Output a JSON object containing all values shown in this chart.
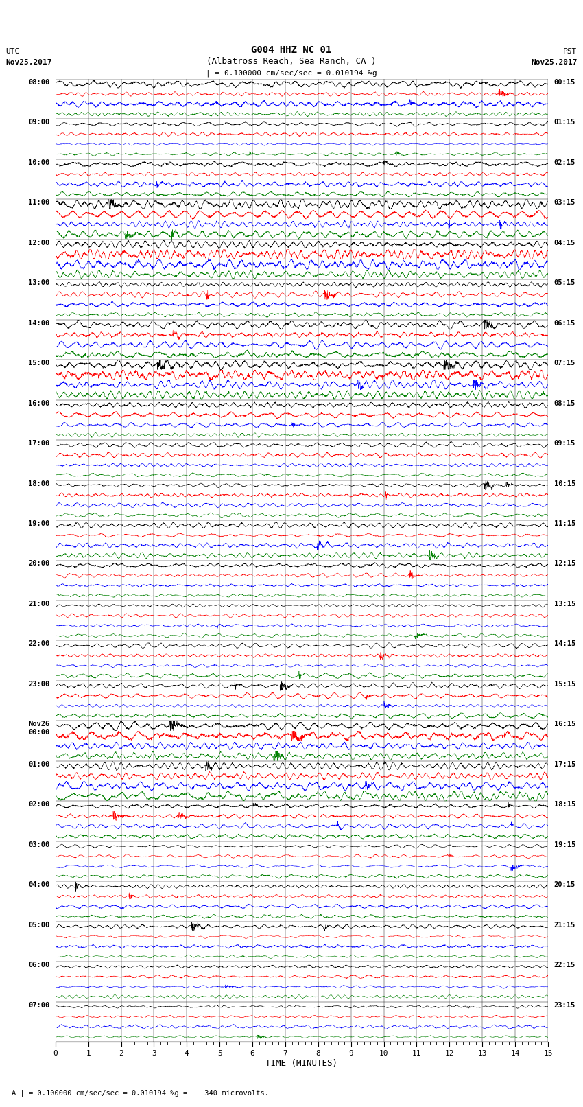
{
  "title_line1": "G004 HHZ NC 01",
  "title_line2": "(Albatross Reach, Sea Ranch, CA )",
  "scale_text": "| = 0.100000 cm/sec/sec = 0.010194 %g",
  "footer_text": "A | = 0.100000 cm/sec/sec = 0.010194 %g =    340 microvolts.",
  "left_label_top": "UTC",
  "left_label_date": "Nov25,2017",
  "right_label_top": "PST",
  "right_label_date": "Nov25,2017",
  "xlabel": "TIME (MINUTES)",
  "xlim": [
    0,
    15
  ],
  "xticks": [
    0,
    1,
    2,
    3,
    4,
    5,
    6,
    7,
    8,
    9,
    10,
    11,
    12,
    13,
    14,
    15
  ],
  "colors": [
    "black",
    "red",
    "blue",
    "green"
  ],
  "num_hours": 24,
  "traces_per_hour": 4,
  "bg_color": "white",
  "left_times_utc": [
    "08:00",
    "09:00",
    "10:00",
    "11:00",
    "12:00",
    "13:00",
    "14:00",
    "15:00",
    "16:00",
    "17:00",
    "18:00",
    "19:00",
    "20:00",
    "21:00",
    "22:00",
    "23:00",
    "Nov26\n00:00",
    "01:00",
    "02:00",
    "03:00",
    "04:00",
    "05:00",
    "06:00",
    "07:00"
  ],
  "right_times_pst": [
    "00:15",
    "01:15",
    "02:15",
    "03:15",
    "04:15",
    "05:15",
    "06:15",
    "07:15",
    "08:15",
    "09:15",
    "10:15",
    "11:15",
    "12:15",
    "13:15",
    "14:15",
    "15:15",
    "16:15",
    "17:15",
    "18:15",
    "19:15",
    "20:15",
    "21:15",
    "22:15",
    "23:15"
  ],
  "amp_profile": [
    0.38,
    0.22,
    0.28,
    0.55,
    0.65,
    0.42,
    0.5,
    0.58,
    0.35,
    0.28,
    0.3,
    0.3,
    0.25,
    0.22,
    0.3,
    0.3,
    0.45,
    0.55,
    0.28,
    0.22,
    0.22,
    0.22,
    0.22,
    0.22
  ]
}
